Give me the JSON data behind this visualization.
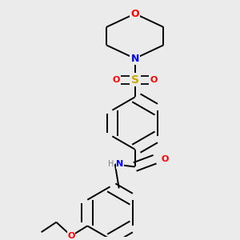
{
  "bg_color": "#ebebeb",
  "bond_color": "#000000",
  "atom_colors": {
    "O": "#ff0000",
    "N": "#0000ff",
    "S": "#ccaa00",
    "C": "#000000",
    "H": "#808080"
  },
  "bond_width": 1.4,
  "font_size": 8
}
